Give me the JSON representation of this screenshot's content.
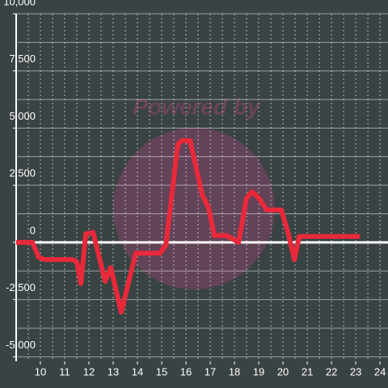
{
  "chart_data": {
    "type": "line",
    "watermark": "Powered by",
    "x": [
      9,
      9.67,
      9.93,
      10.17,
      11.33,
      11.5,
      11.67,
      11.87,
      12.17,
      12.67,
      12.9,
      13.33,
      13.93,
      14.93,
      15.17,
      15.67,
      15.83,
      16.17,
      16.67,
      16.93,
      17.17,
      17.67,
      18.17,
      18.5,
      18.73,
      19,
      19.33,
      19.93,
      20.2,
      20.47,
      20.67,
      23.17
    ],
    "series": [
      {
        "color": "#e8293a",
        "values": [
          0,
          0,
          -650,
          -750,
          -750,
          -850,
          -1800,
          370,
          440,
          -1700,
          -1100,
          -3050,
          -470,
          -470,
          -120,
          4300,
          4450,
          4450,
          2080,
          1520,
          300,
          300,
          0,
          1940,
          2220,
          1940,
          1420,
          1420,
          470,
          -750,
          260,
          260
        ]
      }
    ],
    "xlim": [
      9,
      24.33
    ],
    "xticks": [
      10,
      11,
      12,
      13,
      14,
      15,
      16,
      17,
      18,
      19,
      20,
      21,
      22,
      23,
      24
    ],
    "xminorticks": [
      9.5,
      10,
      10.5,
      11,
      11.5,
      12,
      12.5,
      13,
      13.5,
      14,
      14.5,
      15,
      15.5,
      16,
      16.5,
      17,
      17.5,
      18,
      18.5,
      19,
      19.5,
      20,
      20.5,
      21,
      21.5,
      22,
      22.5,
      23,
      23.5,
      24
    ],
    "ylim": [
      -5200,
      10000
    ],
    "yticks": [
      {
        "value": -5000,
        "label": "-5,000"
      },
      {
        "value": -2500,
        "label": "-2,500"
      },
      0,
      {
        "value": 2500,
        "label": "2,500"
      },
      {
        "value": 5000,
        "label": "5,000"
      },
      {
        "value": 7500,
        "label": "7,500"
      },
      {
        "value": 10000,
        "label": "10,000"
      }
    ],
    "yminorticks": [
      -3750,
      -1250,
      1250,
      3750,
      6250,
      8750
    ],
    "grid": true
  }
}
